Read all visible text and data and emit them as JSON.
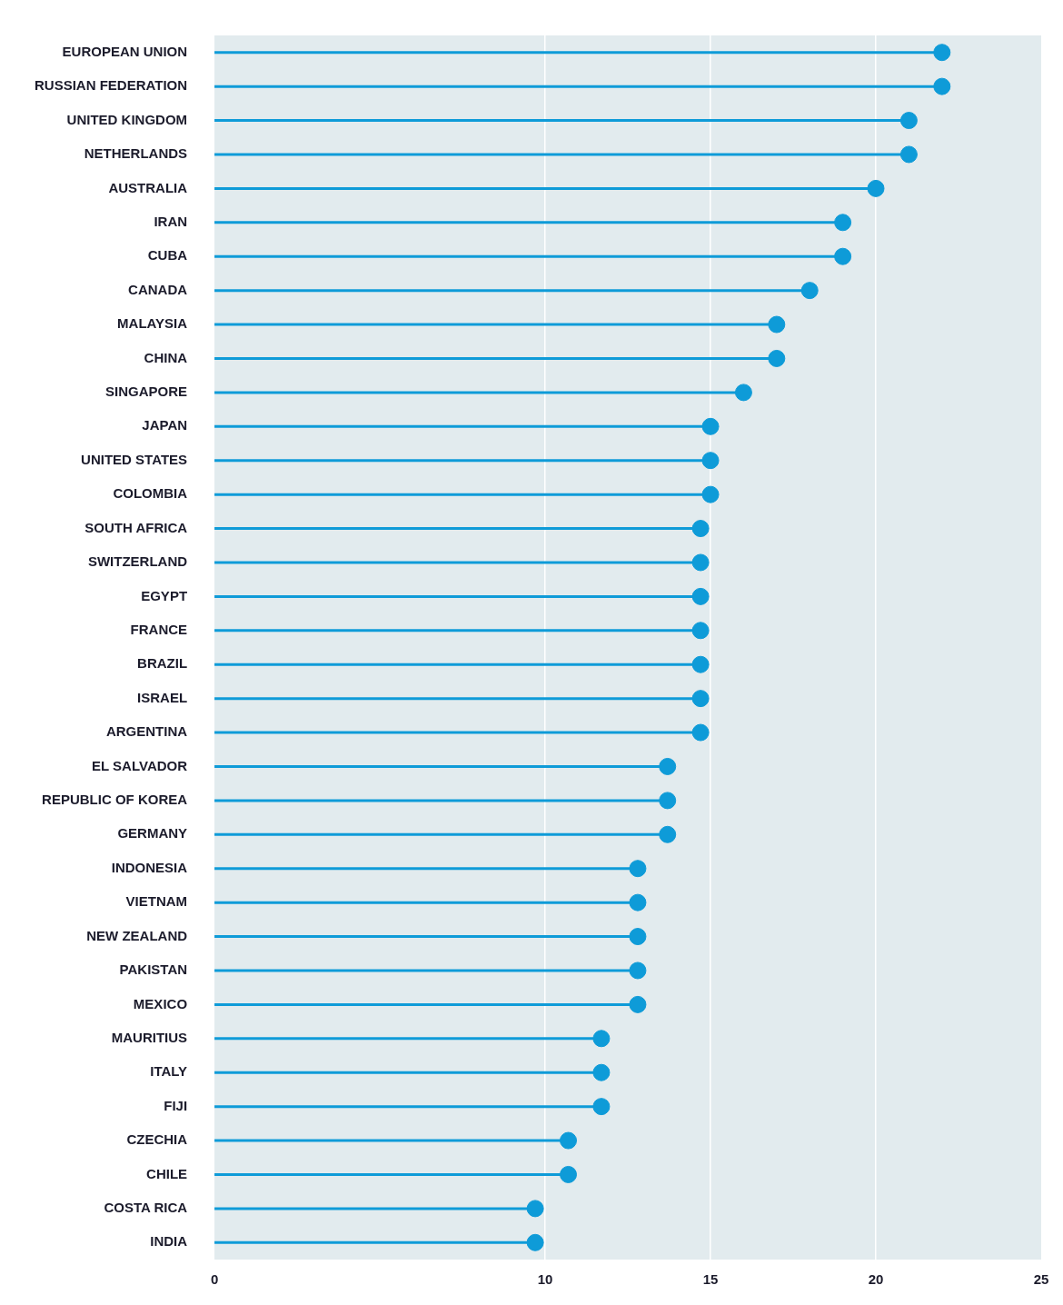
{
  "chart_data": {
    "type": "lollipop",
    "orientation": "horizontal",
    "categories": [
      "EUROPEAN UNION",
      "RUSSIAN FEDERATION",
      "UNITED KINGDOM",
      "NETHERLANDS",
      "AUSTRALIA",
      "IRAN",
      "CUBA",
      "CANADA",
      "MALAYSIA",
      "CHINA",
      "SINGAPORE",
      "JAPAN",
      "UNITED STATES",
      "COLOMBIA",
      "SOUTH AFRICA",
      "SWITZERLAND",
      "EGYPT",
      "FRANCE",
      "BRAZIL",
      "ISRAEL",
      "ARGENTINA",
      "EL SALVADOR",
      "REPUBLIC OF KOREA",
      "GERMANY",
      "INDONESIA",
      "VIETNAM",
      "NEW ZEALAND",
      "PAKISTAN",
      "MEXICO",
      "MAURITIUS",
      "ITALY",
      "FIJI",
      "CZECHIA",
      "CHILE",
      "COSTA RICA",
      "INDIA"
    ],
    "values": [
      22,
      22,
      21,
      21,
      20,
      19,
      19,
      18,
      17,
      17,
      16,
      15,
      15,
      15,
      14.7,
      14.7,
      14.7,
      14.7,
      14.7,
      14.7,
      14.7,
      13.7,
      13.7,
      13.7,
      12.8,
      12.8,
      12.8,
      12.8,
      12.8,
      11.7,
      11.7,
      11.7,
      10.7,
      10.7,
      9.7,
      9.7
    ],
    "color": "#0e9bd8",
    "marker": "circle",
    "xlim": [
      0,
      25
    ],
    "xticks": [
      0,
      10,
      15,
      20,
      25
    ],
    "grid": "x",
    "legend": false
  }
}
